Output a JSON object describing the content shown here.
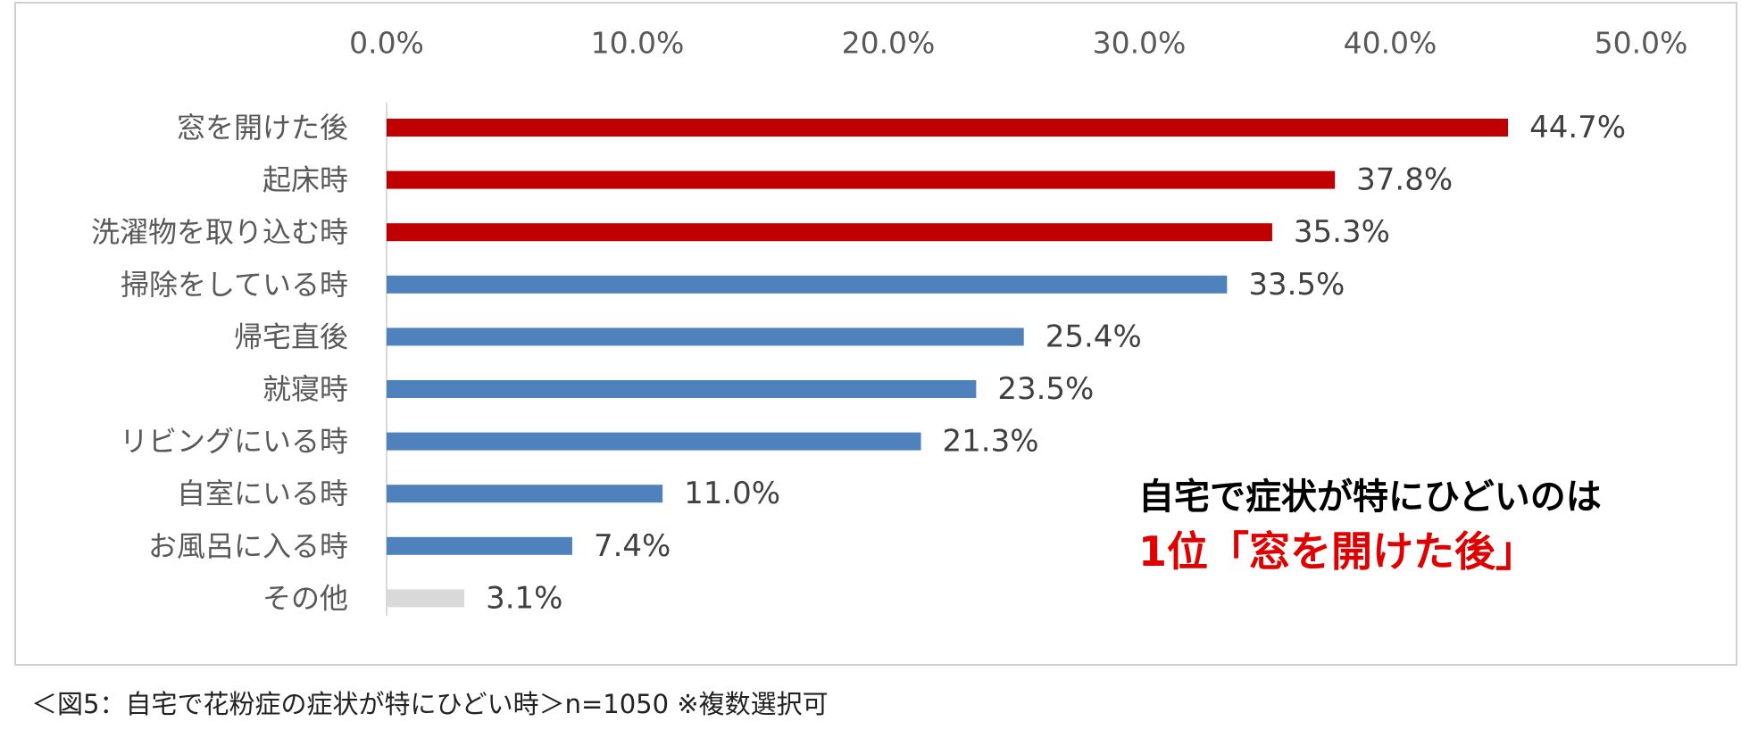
{
  "chart_data": {
    "type": "hbar",
    "categories": [
      "窓を開けた後",
      "起床時",
      "洗濯物を取り込む時",
      "掃除をしている時",
      "帰宅直後",
      "就寝時",
      "リビングにいる時",
      "自室にいる時",
      "お風呂に入る時",
      "その他"
    ],
    "values": [
      44.7,
      37.8,
      35.3,
      33.5,
      25.4,
      23.5,
      21.3,
      11.0,
      7.4,
      3.1
    ],
    "value_labels": [
      "44.7%",
      "37.8%",
      "35.3%",
      "33.5%",
      "25.4%",
      "23.5%",
      "21.3%",
      "11.0%",
      "7.4%",
      "3.1%"
    ],
    "colors": [
      "#c00000",
      "#c00000",
      "#c00000",
      "#4f81bd",
      "#4f81bd",
      "#4f81bd",
      "#4f81bd",
      "#4f81bd",
      "#4f81bd",
      "#d9d9d9"
    ],
    "xlim": [
      0,
      50
    ],
    "xticks": [
      {
        "value": 0,
        "label": "0.0%"
      },
      {
        "value": 10,
        "label": "10.0%"
      },
      {
        "value": 20,
        "label": "20.0%"
      },
      {
        "value": 30,
        "label": "30.0%"
      },
      {
        "value": 40,
        "label": "40.0%"
      },
      {
        "value": 50,
        "label": "50.0%"
      }
    ],
    "annotation": [
      "自宅で症状が特にひどいのは",
      "1位「窓を開けた後」"
    ],
    "caption": "＜図5：自宅で花粉症の症状が特にひどい時＞n=1050 ※複数選択可"
  }
}
